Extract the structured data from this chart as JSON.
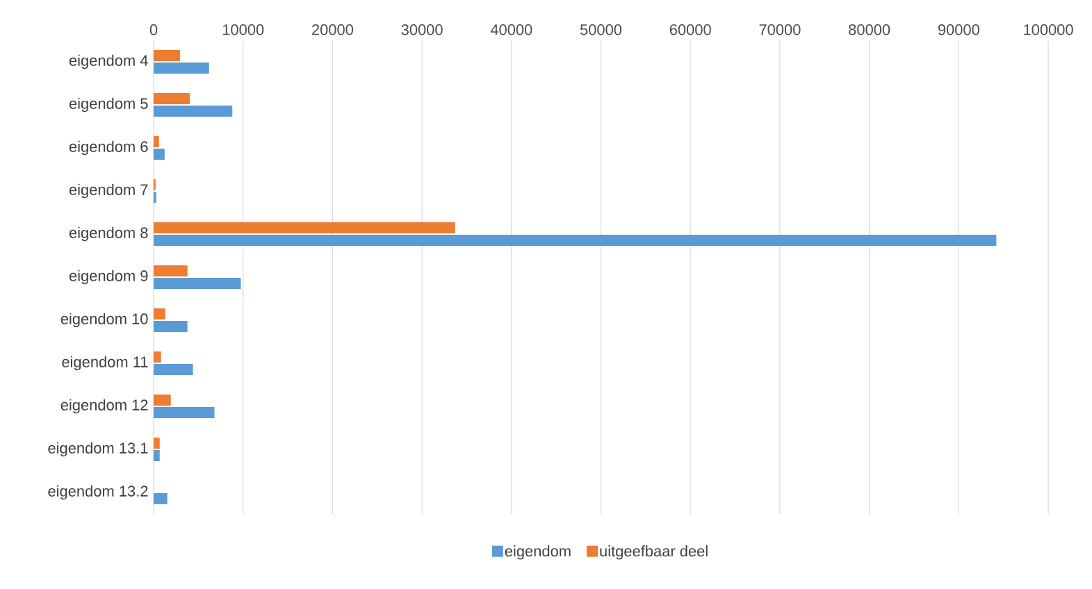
{
  "chart_data": {
    "type": "bar",
    "orientation": "horizontal",
    "categories": [
      "eigendom 4",
      "eigendom 5",
      "eigendom 6",
      "eigendom 7",
      "eigendom 8",
      "eigendom 9",
      "eigendom 10",
      "eigendom 11",
      "eigendom 12",
      "eigendom 13.1",
      "eigendom 13.2"
    ],
    "series": [
      {
        "name": "eigendom",
        "color": "#5b9bd5",
        "values": [
          6200,
          8800,
          1230,
          290,
          94200,
          9750,
          3780,
          4400,
          6800,
          680,
          1530
        ]
      },
      {
        "name": "uitgeefbaar deel",
        "color": "#ed7d31",
        "values": [
          2950,
          4050,
          600,
          210,
          33700,
          3780,
          1300,
          830,
          1920,
          680,
          null
        ]
      }
    ],
    "xlim": [
      0,
      100000
    ],
    "xticks": [
      0,
      10000,
      20000,
      30000,
      40000,
      50000,
      60000,
      70000,
      80000,
      90000,
      100000
    ],
    "grid": "x",
    "legend": "bottom"
  }
}
